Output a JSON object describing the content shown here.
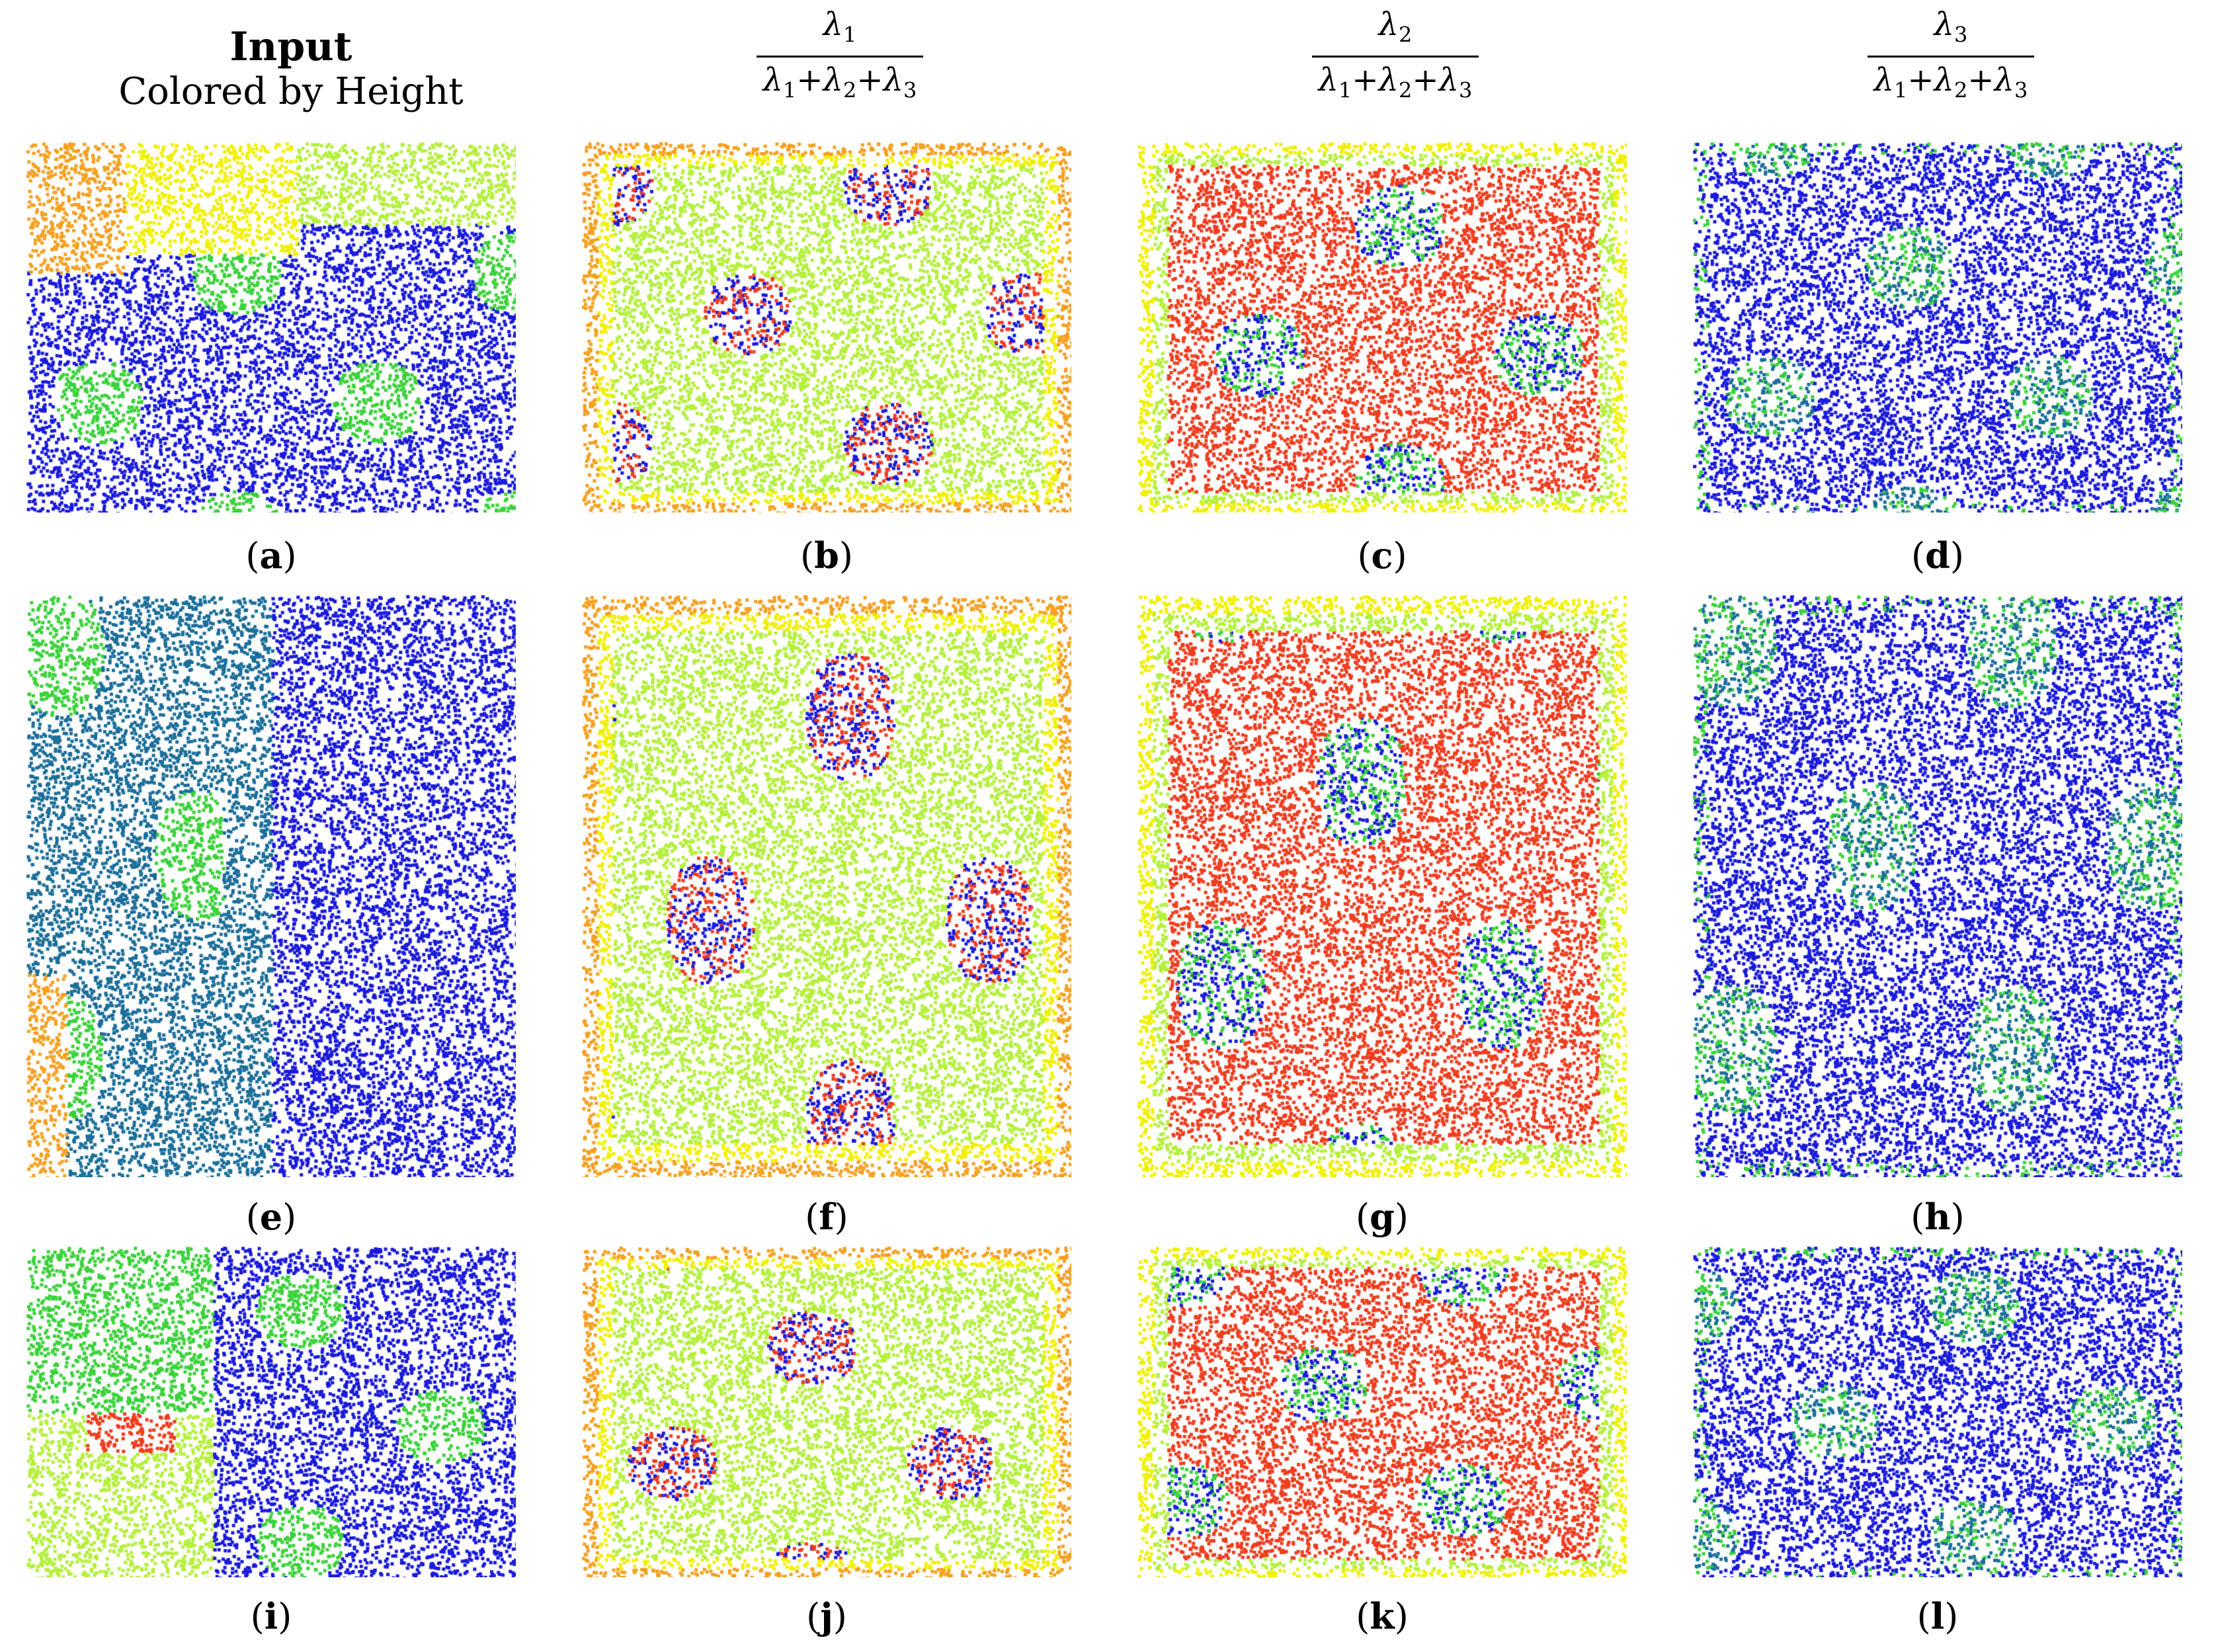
{
  "columns": {
    "input": {
      "title": "Input",
      "subtitle": "Colored by Height"
    },
    "eig1": {
      "numerator": "λ",
      "num_sub": "1",
      "denominator": [
        "λ",
        "1",
        "+λ",
        "2",
        "+λ",
        "3"
      ]
    },
    "eig2": {
      "numerator": "λ",
      "num_sub": "2",
      "denominator": [
        "λ",
        "1",
        "+λ",
        "2",
        "+λ",
        "3"
      ]
    },
    "eig3": {
      "numerator": "λ",
      "num_sub": "3",
      "denominator": [
        "λ",
        "1",
        "+λ",
        "2",
        "+λ",
        "3"
      ]
    }
  },
  "panels": [
    {
      "label": "a",
      "scheme": "height"
    },
    {
      "label": "b",
      "scheme": "lam1"
    },
    {
      "label": "c",
      "scheme": "lam2"
    },
    {
      "label": "d",
      "scheme": "lam3"
    },
    {
      "label": "e",
      "scheme": "height2"
    },
    {
      "label": "f",
      "scheme": "lam1"
    },
    {
      "label": "g",
      "scheme": "lam2"
    },
    {
      "label": "h",
      "scheme": "lam3"
    },
    {
      "label": "i",
      "scheme": "height3"
    },
    {
      "label": "j",
      "scheme": "lam1"
    },
    {
      "label": "k",
      "scheme": "lam2"
    },
    {
      "label": "l",
      "scheme": "lam3"
    }
  ],
  "colors": {
    "blue": "#1a1adc",
    "teal": "#1a6e9a",
    "green": "#3ad23a",
    "lime": "#b4f03c",
    "yellow": "#f0f000",
    "orange": "#f5a020",
    "red": "#f03c1e",
    "darkred": "#d21414"
  }
}
